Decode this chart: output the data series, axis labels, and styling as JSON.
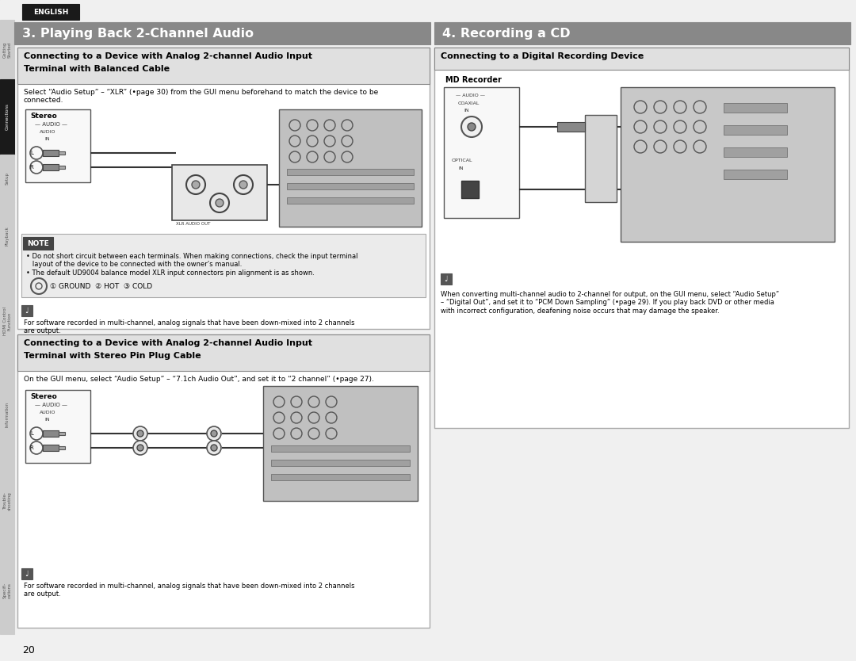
{
  "bg": "#ffffff",
  "page_bg": "#f2f2f2",
  "sidebar_bg": "#e8e8e8",
  "sidebar_active_bg": "#1a1a1a",
  "sidebar_active_fg": "#ffffff",
  "sidebar_fg": "#555555",
  "english_bg": "#1a1a1a",
  "english_fg": "#ffffff",
  "english_text": "ENGLISH",
  "header3_bg": "#888888",
  "header3_fg": "#ffffff",
  "header3_text": "3. Playing Back 2-Channel Audio",
  "header4_bg": "#888888",
  "header4_fg": "#ffffff",
  "header4_text": "4. Recording a CD",
  "box_bg": "#ffffff",
  "box_border": "#999999",
  "subheader_bg": "#e0e0e0",
  "subheader_border": "#888888",
  "subheader3_fg": "#000000",
  "note_bg": "#e8e8e8",
  "note_border": "#888888",
  "note_label_bg": "#555555",
  "note_label_fg": "#ffffff",
  "device_bg": "#c8c8c8",
  "device_border": "#666666",
  "tip_icon_bg": "#555555",
  "tip_icon_fg": "#ffffff",
  "sidebar_items": [
    [
      "Getting Started",
      false
    ],
    [
      "Connections",
      true
    ],
    [
      "Setup",
      false
    ],
    [
      "Playback",
      false
    ],
    [
      "HDMI Control\nFunction",
      false
    ],
    [
      "Information",
      false
    ],
    [
      "Trouble-\nshooting",
      false
    ],
    [
      "Specifi-\ncations",
      false
    ]
  ],
  "box1_title1": "Connecting to a Device with Analog 2-channel Audio Input",
  "box1_title2": "Terminal with Balanced Cable",
  "box1_body": "Select “Audio Setup” – “XLR” (•page 30) from the GUI menu beforehand to match the device to be\nconnected.",
  "note_text": "• Do not short circuit between each terminals. When making connections, check the input terminal\n   layout of the device to be connected with the owner’s manual.\n• The default UD9004 balance model XLR input connectors pin alignment is as shown.",
  "ground_text": "① GROUND  ② HOT  ③ COLD",
  "tip1": "For software recorded in multi-channel, analog signals that have been down-mixed into 2 channels\nare output.",
  "box2_title1": "Connecting to a Device with Analog 2-channel Audio Input",
  "box2_title2": "Terminal with Stereo Pin Plug Cable",
  "box2_body": "On the GUI menu, select “Audio Setup” – “7.1ch Audio Out”, and set it to “2 channel” (•page 27).",
  "tip2": "For software recorded in multi-channel, analog signals that have been down-mixed into 2 channels\nare output.",
  "box3_title": "Connecting to a Digital Recording Device",
  "md_label": "MD Recorder",
  "box3_body": "When converting multi-channel audio to 2-channel for output, on the GUI menu, select “Audio Setup”\n– “Digital Out”, and set it to “PCM Down Sampling” (•page 29). If you play back DVD or other media\nwith incorrect configuration, deafening noise occurs that may damage the speaker.",
  "page_num": "20"
}
